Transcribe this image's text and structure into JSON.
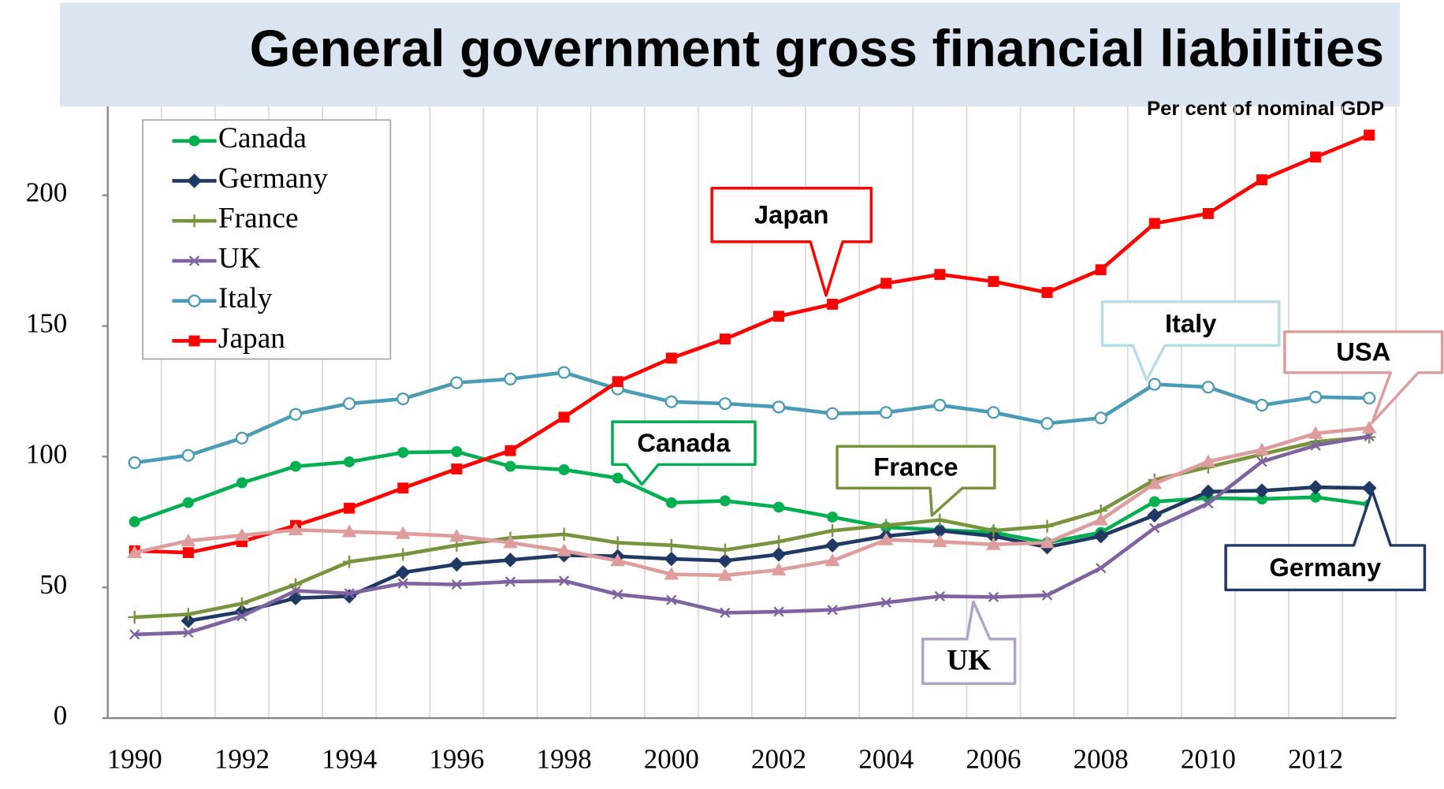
{
  "chart_data": {
    "type": "line",
    "title": "General government gross financial liabilities",
    "subtitle": "Per cent of nominal GDP",
    "categories": [
      "1990",
      null,
      "1992",
      null,
      "1994",
      null,
      "1996",
      null,
      "1998",
      null,
      "2000",
      null,
      "2002",
      null,
      "2004",
      null,
      "2006",
      null,
      "2008",
      null,
      "2010",
      null,
      "2012",
      null
    ],
    "ylim": [
      0,
      234
    ],
    "yticks": [
      0,
      50,
      100,
      150,
      200
    ],
    "grid": "x",
    "legend": "top-left",
    "series": [
      {
        "name": "Canada",
        "color": "#00b050",
        "marker": "circle",
        "in_legend": true,
        "values": [
          75.1,
          82.4,
          90,
          96.3,
          98,
          101.6,
          101.9,
          96.3,
          95,
          91.8,
          82.4,
          83.1,
          80.7,
          76.9,
          73,
          72,
          71,
          67.1,
          71,
          82.8,
          84.2,
          83.8,
          84.5,
          81.7
        ]
      },
      {
        "name": "Germany",
        "color": "#1f3864",
        "marker": "diamond",
        "in_legend": true,
        "values": [
          null,
          37.2,
          40.7,
          45.9,
          46.6,
          55.7,
          58.8,
          60.5,
          62.3,
          61.9,
          60.9,
          60.2,
          62.6,
          66.1,
          69.6,
          71.7,
          69.6,
          65.4,
          69.6,
          77.6,
          86.6,
          87,
          88.3,
          88
        ]
      },
      {
        "name": "France",
        "color": "#77933c",
        "marker": "plus",
        "in_legend": true,
        "values": [
          38.6,
          39.7,
          43.8,
          51.1,
          59.8,
          62.6,
          66.1,
          68.9,
          70.3,
          67.1,
          66.1,
          64.3,
          67.5,
          71.7,
          73.7,
          75.8,
          71.7,
          73.4,
          79.3,
          91.1,
          96,
          100.9,
          105.7,
          107.5
        ]
      },
      {
        "name": "UK",
        "color": "#7f63a1",
        "marker": "x",
        "in_legend": true,
        "values": [
          32,
          32.7,
          39,
          48.7,
          47.7,
          51.5,
          51.1,
          52.2,
          52.5,
          47.3,
          45.2,
          40.3,
          40.7,
          41.4,
          44.2,
          46.6,
          46.3,
          47,
          57.4,
          72.7,
          82.1,
          98.1,
          104.3,
          107.8
        ]
      },
      {
        "name": "Italy",
        "color": "#4a9bb5",
        "marker": "open-circle",
        "in_legend": true,
        "values": [
          97.7,
          100.5,
          107.1,
          116.2,
          120.3,
          122.1,
          128.3,
          129.7,
          132.2,
          125.9,
          121,
          120.3,
          119,
          116.5,
          116.9,
          119.7,
          116.9,
          112.7,
          114.8,
          127.7,
          126.6,
          119.7,
          122.8,
          122.4
        ]
      },
      {
        "name": "Japan",
        "color": "#ff0000",
        "marker": "square",
        "in_legend": true,
        "values": [
          64,
          63.3,
          67.5,
          73.7,
          80.3,
          88,
          95.3,
          102.3,
          115.1,
          128.7,
          137.7,
          145,
          153.7,
          158.3,
          166.3,
          169.7,
          167,
          162.8,
          171.5,
          189.2,
          193,
          205.9,
          214.6,
          223
        ]
      },
      {
        "name": "USA",
        "color": "#df9c9c",
        "marker": "triangle",
        "in_legend": false,
        "values": [
          63.3,
          67.8,
          69.9,
          72,
          71.3,
          70.6,
          69.6,
          67.1,
          64,
          60.2,
          55,
          54.6,
          56.7,
          60.2,
          68.2,
          67.5,
          66.4,
          67.1,
          75.8,
          89.7,
          98.1,
          102.6,
          108.9,
          111
        ]
      }
    ]
  }
}
